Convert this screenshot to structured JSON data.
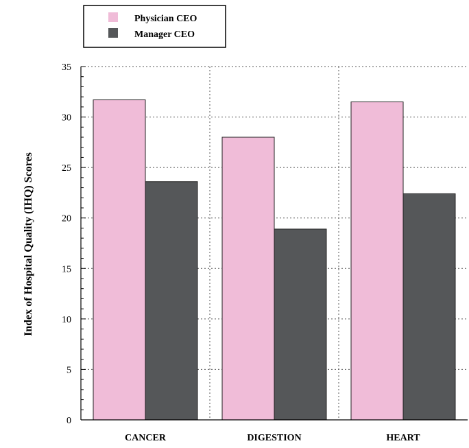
{
  "chart_data": {
    "type": "bar",
    "categories": [
      "CANCER",
      "DIGESTION",
      "HEART"
    ],
    "series": [
      {
        "name": "Physician CEO",
        "values": [
          31.7,
          28.0,
          31.5
        ],
        "color": "#f0bcd8"
      },
      {
        "name": "Manager CEO",
        "values": [
          23.6,
          18.9,
          22.4
        ],
        "color": "#555759"
      }
    ],
    "title": "",
    "xlabel": "",
    "ylabel": "Index of Hospital Quality (IHQ) Scores",
    "ylim": [
      0,
      35
    ],
    "yticks": [
      "0",
      "5",
      "10",
      "15",
      "20",
      "25",
      "30",
      "35"
    ],
    "grid": "dotted",
    "legend_position": "top-left, outside plot"
  }
}
